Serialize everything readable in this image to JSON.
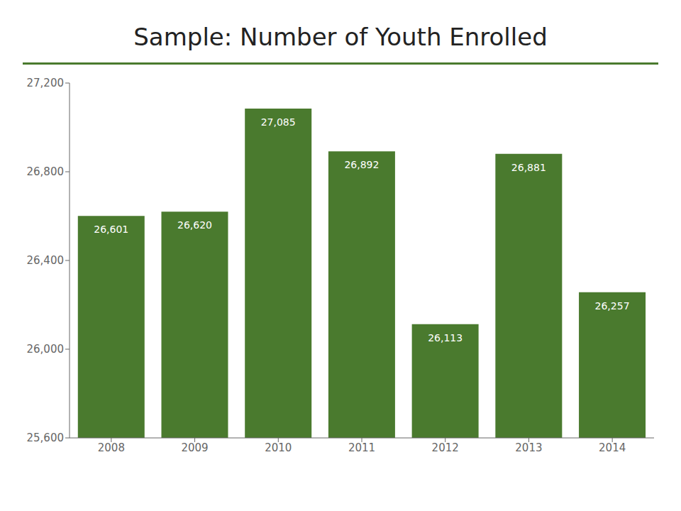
{
  "chart_data": {
    "type": "bar",
    "title": "Sample: Number of Youth Enrolled",
    "categories": [
      "2008",
      "2009",
      "2010",
      "2011",
      "2012",
      "2013",
      "2014"
    ],
    "values": [
      26601,
      26620,
      27085,
      26892,
      26113,
      26881,
      26257
    ],
    "value_labels": [
      "26,601",
      "26,620",
      "27,085",
      "26,892",
      "26,113",
      "26,881",
      "26,257"
    ],
    "data_labels": true,
    "color": "#4a7a2e",
    "ylim": [
      25600,
      27200
    ],
    "yticks": [
      {
        "value": 25600,
        "label": "25,600"
      },
      {
        "value": 26000,
        "label": "26,000"
      },
      {
        "value": 26400,
        "label": "26,400"
      },
      {
        "value": 26800,
        "label": "26,800"
      },
      {
        "value": 27200,
        "label": "27,200"
      }
    ],
    "grid": false
  }
}
